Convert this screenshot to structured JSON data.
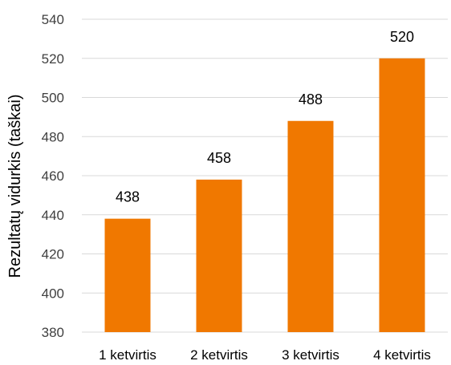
{
  "chart_data": {
    "type": "bar",
    "title": "",
    "xlabel": "",
    "ylabel": "Rezultatų vidurkis (taškai)",
    "categories": [
      "1 ketvirtis",
      "2 ketvirtis",
      "3 ketvirtis",
      "4 ketvirtis"
    ],
    "values": [
      438,
      458,
      488,
      520
    ],
    "ylim": [
      380,
      540
    ],
    "yticks": [
      380,
      400,
      420,
      440,
      460,
      480,
      500,
      520,
      540
    ],
    "grid": true,
    "legend": "none",
    "bar_color": "#f07800",
    "data_labels": true
  }
}
